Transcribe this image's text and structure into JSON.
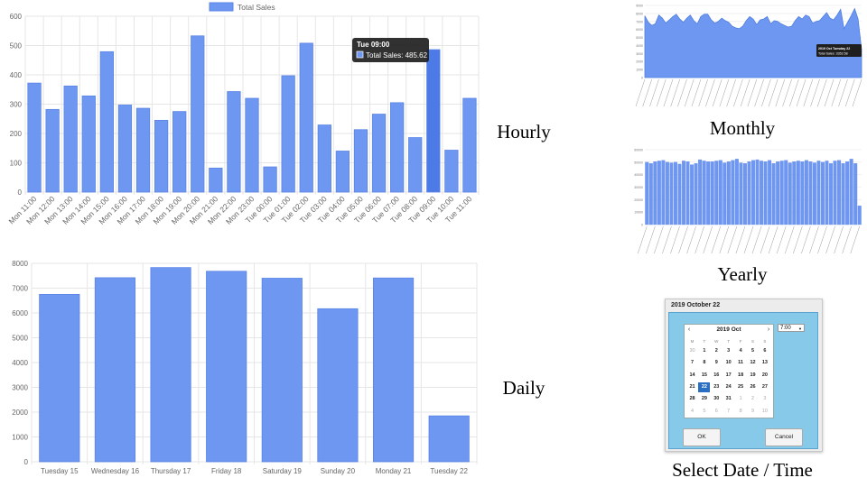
{
  "captions": {
    "hourly": "Hourly",
    "daily": "Daily",
    "monthly": "Monthly",
    "yearly": "Yearly",
    "picker": "Select Date / Time"
  },
  "colors": {
    "bar_fill": "#6e97f1",
    "bar_stroke": "#5b84e6",
    "grid": "#e6e6e6",
    "tooltip_bg": "#1f1f1f"
  },
  "hourly_chart": {
    "legend": "Total Sales",
    "tooltip": {
      "title": "Tue 09:00",
      "text": "Total Sales: 485.62"
    }
  },
  "monthly_chart": {
    "tooltip": {
      "title": "2019 Oct Tuesday 22",
      "text": "Total Sales: 3352.58"
    }
  },
  "picker": {
    "title": "2019 October 22",
    "month_label": "2019 Oct",
    "prev": "‹",
    "next": "›",
    "weekdays": [
      "M",
      "T",
      "W",
      "T",
      "F",
      "S",
      "S"
    ],
    "days": [
      [
        "30",
        "1",
        "2",
        "3",
        "4",
        "5",
        "6"
      ],
      [
        "7",
        "8",
        "9",
        "10",
        "11",
        "12",
        "13"
      ],
      [
        "14",
        "15",
        "16",
        "17",
        "18",
        "19",
        "20"
      ],
      [
        "21",
        "22",
        "23",
        "24",
        "25",
        "26",
        "27"
      ],
      [
        "28",
        "29",
        "30",
        "31",
        "1",
        "2",
        "3"
      ],
      [
        "4",
        "5",
        "6",
        "7",
        "8",
        "9",
        "10"
      ]
    ],
    "selected_day": "22",
    "time_value": "7:00",
    "ok_label": "OK",
    "cancel_label": "Cancel"
  },
  "chart_data": [
    {
      "id": "hourly",
      "type": "bar",
      "title": "",
      "legend": [
        "Total Sales"
      ],
      "categories": [
        "Mon 11:00",
        "Mon 12:00",
        "Mon 13:00",
        "Mon 14:00",
        "Mon 15:00",
        "Mon 16:00",
        "Mon 17:00",
        "Mon 18:00",
        "Mon 19:00",
        "Mon 20:00",
        "Mon 21:00",
        "Mon 22:00",
        "Mon 23:00",
        "Tue 00:00",
        "Tue 01:00",
        "Tue 02:00",
        "Tue 03:00",
        "Tue 04:00",
        "Tue 05:00",
        "Tue 06:00",
        "Tue 07:00",
        "Tue 08:00",
        "Tue 09:00",
        "Tue 10:00",
        "Tue 11:00"
      ],
      "series": [
        {
          "name": "Total Sales",
          "values": [
            372,
            282,
            362,
            328,
            479,
            297,
            286,
            245,
            275,
            533,
            82,
            343,
            320,
            86,
            397,
            508,
            229,
            140,
            213,
            266,
            305,
            186,
            486,
            143,
            320
          ]
        }
      ],
      "yticks": [
        0,
        100,
        200,
        300,
        400,
        500,
        600
      ],
      "ylim": [
        0,
        600
      ],
      "grid": true,
      "legend_position": "top"
    },
    {
      "id": "daily",
      "type": "bar",
      "title": "",
      "categories": [
        "Tuesday 15",
        "Wednesday 16",
        "Thursday 17",
        "Friday 18",
        "Saturday 19",
        "Sunday 20",
        "Monday 21",
        "Tuesday 22"
      ],
      "values": [
        6750,
        7420,
        7830,
        7680,
        7400,
        6170,
        7410,
        1850
      ],
      "yticks": [
        0,
        1000,
        2000,
        3000,
        4000,
        5000,
        6000,
        7000,
        8000
      ],
      "ylim": [
        0,
        8000
      ],
      "grid": true
    },
    {
      "id": "monthly",
      "type": "area",
      "title": "",
      "values": [
        7700,
        6900,
        6500,
        6700,
        7800,
        7400,
        6800,
        7200,
        7600,
        7900,
        7300,
        6900,
        7400,
        7800,
        7100,
        6700,
        7600,
        7900,
        7900,
        7200,
        6800,
        7000,
        7400,
        7100,
        6900,
        6400,
        6200,
        6100,
        6400,
        7100,
        7600,
        7300,
        6600,
        7200,
        7300,
        7600,
        6700,
        7100,
        7000,
        6700,
        6500,
        6300,
        6400,
        7100,
        7600,
        7300,
        7800,
        7600,
        6800,
        7000,
        7100,
        7600,
        8100,
        7400,
        7200,
        7800,
        8500,
        6100,
        6900,
        7700,
        8600,
        7300,
        3500
      ],
      "yticks": [
        0,
        1000,
        2000,
        3000,
        4000,
        5000,
        6000,
        7000,
        8000,
        9000
      ],
      "ylim": [
        0,
        9000
      ],
      "grid": true
    },
    {
      "id": "yearly",
      "type": "bar",
      "title": "",
      "values": [
        50000,
        49000,
        50500,
        51000,
        51500,
        50000,
        49500,
        50000,
        48500,
        51000,
        50500,
        48000,
        49000,
        52000,
        51000,
        50500,
        50500,
        51000,
        51500,
        49500,
        50500,
        51500,
        52500,
        49500,
        49000,
        50500,
        51500,
        52000,
        51000,
        50500,
        51500,
        49000,
        50500,
        51000,
        51500,
        49500,
        50500,
        51000,
        50500,
        51500,
        50500,
        49500,
        51000,
        50000,
        51000,
        49000,
        51000,
        51500,
        49000,
        50500,
        52500,
        49000,
        15000
      ],
      "yticks": [
        0,
        10000,
        20000,
        30000,
        40000,
        50000,
        60000
      ],
      "ylim": [
        0,
        60000
      ],
      "grid": true
    }
  ]
}
